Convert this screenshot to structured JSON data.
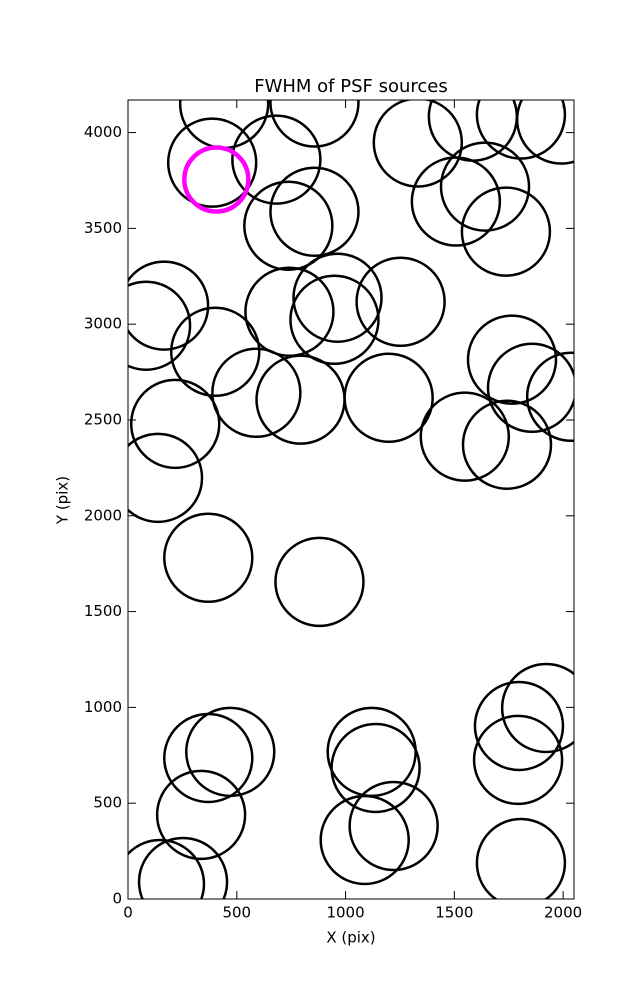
{
  "chart_data": {
    "type": "scatter",
    "title": "FWHM of PSF sources",
    "xlabel": "X (pix)",
    "ylabel": "Y (pix)",
    "xlim": [
      0,
      2050
    ],
    "ylim": [
      0,
      4170
    ],
    "xticks": [
      0,
      500,
      1000,
      1500,
      2000
    ],
    "yticks": [
      0,
      500,
      1000,
      1500,
      2000,
      2500,
      3000,
      3500,
      4000
    ],
    "series": [
      {
        "color": "#000000",
        "x": [
          442,
          857,
          387,
          682,
          737,
          857,
          1332,
          1585,
          1806,
          1991,
          1507,
          1641,
          1737,
          166,
          83,
          401,
          590,
          793,
          742,
          963,
          949,
          1253,
          1198,
          1548,
          1742,
          1765,
          1857,
          2037,
          217,
          138,
          369,
          880,
          369,
          470,
          336,
          253,
          147,
          1120,
          1138,
          1088,
          1221,
          1922,
          1797,
          1793,
          1806
        ],
        "y": [
          4150,
          4157,
          3843,
          3859,
          3514,
          3587,
          3948,
          4083,
          4094,
          4068,
          3640,
          3718,
          3483,
          3097,
          2992,
          2856,
          2642,
          2606,
          3065,
          3138,
          3023,
          3117,
          2616,
          2413,
          2371,
          2815,
          2668,
          2621,
          2480,
          2198,
          1781,
          1655,
          736,
          768,
          439,
          89,
          78,
          768,
          684,
          308,
          381,
          997,
          903,
          726,
          188
        ]
      },
      {
        "color": "#ff00ff",
        "x": [
          406
        ],
        "y": [
          3755
        ]
      }
    ]
  }
}
